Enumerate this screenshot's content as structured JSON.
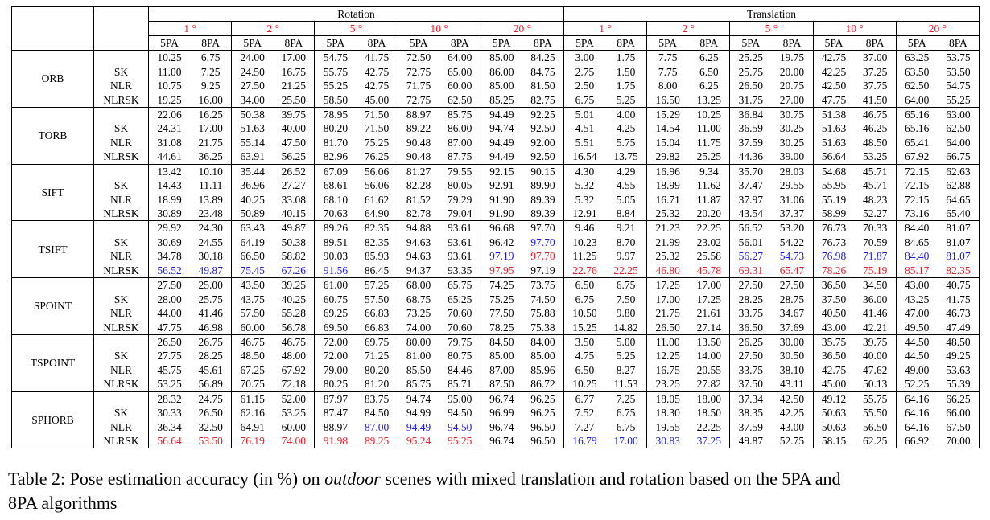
{
  "header": {
    "groups": [
      "Rotation",
      "Translation"
    ],
    "thresholds": [
      "1 °",
      "2 °",
      "5 °",
      "10 °",
      "20 °"
    ],
    "threshold_color": "#e8202a",
    "columns": [
      "5PA",
      "8PA"
    ]
  },
  "methods": [
    {
      "name": "ORB",
      "rows": [
        {
          "values": [
            "10.25",
            "6.75",
            "24.00",
            "17.00",
            "54.75",
            "41.75",
            "72.50",
            "64.00",
            "85.00",
            "84.25",
            "3.00",
            "1.75",
            "7.75",
            "6.25",
            "25.25",
            "19.75",
            "42.75",
            "37.00",
            "63.25",
            "53.75"
          ]
        },
        {
          "label": "SK",
          "values": [
            "11.00",
            "7.25",
            "24.50",
            "16.75",
            "55.75",
            "42.75",
            "72.75",
            "65.00",
            "86.00",
            "84.75",
            "2.75",
            "1.50",
            "7.75",
            "6.50",
            "25.75",
            "20.00",
            "42.25",
            "37.25",
            "63.50",
            "53.50"
          ]
        },
        {
          "label": "NLR",
          "values": [
            "10.75",
            "9.25",
            "27.50",
            "21.25",
            "55.25",
            "42.75",
            "71.75",
            "60.00",
            "85.00",
            "81.50",
            "2.50",
            "1.75",
            "8.00",
            "6.25",
            "26.50",
            "20.75",
            "42.50",
            "37.75",
            "62.50",
            "54.75"
          ]
        },
        {
          "label": "NLRSK",
          "values": [
            "19.25",
            "16.00",
            "34.00",
            "25.50",
            "58.50",
            "45.00",
            "72.75",
            "62.50",
            "85.25",
            "82.75",
            "6.75",
            "5.25",
            "16.50",
            "13.25",
            "31.75",
            "27.00",
            "47.75",
            "41.50",
            "64.00",
            "55.25"
          ]
        }
      ]
    },
    {
      "name": "TORB",
      "rows": [
        {
          "values": [
            "22.06",
            "16.25",
            "50.38",
            "39.75",
            "78.95",
            "71.50",
            "88.97",
            "85.75",
            "94.49",
            "92.25",
            "5.01",
            "4.00",
            "15.29",
            "10.25",
            "36.84",
            "30.75",
            "51.38",
            "46.75",
            "65.16",
            "63.00"
          ]
        },
        {
          "label": "SK",
          "values": [
            "24.31",
            "17.00",
            "51.63",
            "40.00",
            "80.20",
            "71.50",
            "89.22",
            "86.00",
            "94.74",
            "92.50",
            "4.51",
            "4.25",
            "14.54",
            "11.00",
            "36.59",
            "30.25",
            "51.63",
            "46.25",
            "65.16",
            "62.50"
          ]
        },
        {
          "label": "NLR",
          "values": [
            "31.08",
            "21.75",
            "55.14",
            "47.50",
            "81.70",
            "75.25",
            "90.48",
            "87.00",
            "94.49",
            "92.00",
            "5.51",
            "5.75",
            "15.04",
            "11.75",
            "37.59",
            "30.25",
            "51.63",
            "48.50",
            "65.41",
            "64.00"
          ]
        },
        {
          "label": "NLRSK",
          "values": [
            "44.61",
            "36.25",
            "63.91",
            "56.25",
            "82.96",
            "76.25",
            "90.48",
            "87.75",
            "94.49",
            "92.50",
            "16.54",
            "13.75",
            "29.82",
            "25.25",
            "44.36",
            "39.00",
            "56.64",
            "53.25",
            "67.92",
            "66.75"
          ]
        }
      ]
    },
    {
      "name": "SIFT",
      "rows": [
        {
          "values": [
            "13.42",
            "10.10",
            "35.44",
            "26.52",
            "67.09",
            "56.06",
            "81.27",
            "79.55",
            "92.15",
            "90.15",
            "4.30",
            "4.29",
            "16.96",
            "9.34",
            "35.70",
            "28.03",
            "54.68",
            "45.71",
            "72.15",
            "62.63"
          ]
        },
        {
          "label": "SK",
          "values": [
            "14.43",
            "11.11",
            "36.96",
            "27.27",
            "68.61",
            "56.06",
            "82.28",
            "80.05",
            "92.91",
            "89.90",
            "5.32",
            "4.55",
            "18.99",
            "11.62",
            "37.47",
            "29.55",
            "55.95",
            "45.71",
            "72.15",
            "62.88"
          ]
        },
        {
          "label": "NLR",
          "values": [
            "18.99",
            "13.89",
            "40.25",
            "33.08",
            "68.10",
            "61.62",
            "81.52",
            "79.29",
            "91.90",
            "89.39",
            "5.32",
            "5.05",
            "16.71",
            "11.87",
            "37.97",
            "31.06",
            "55.19",
            "48.23",
            "72.15",
            "64.65"
          ]
        },
        {
          "label": "NLRSK",
          "values": [
            "30.89",
            "23.48",
            "50.89",
            "40.15",
            "70.63",
            "64.90",
            "82.78",
            "79.04",
            "91.90",
            "89.39",
            "12.91",
            "8.84",
            "25.32",
            "20.20",
            "43.54",
            "37.37",
            "58.99",
            "52.27",
            "73.16",
            "65.40"
          ]
        }
      ]
    },
    {
      "name": "TSIFT",
      "rows": [
        {
          "values": [
            "29.92",
            "24.30",
            "63.43",
            "49.87",
            "89.26",
            "82.35",
            "94.88",
            "93.61",
            "96.68",
            "97.70",
            "9.46",
            "9.21",
            "21.23",
            "22.25",
            "56.52",
            "53.20",
            "76.73",
            "70.33",
            "84.40",
            "81.07"
          ]
        },
        {
          "label": "SK",
          "values": [
            "30.69",
            "24.55",
            "64.19",
            "50.38",
            "89.51",
            "82.35",
            "94.63",
            "93.61",
            "96.42",
            "97.70",
            "10.23",
            "8.70",
            "21.99",
            "23.02",
            "56.01",
            "54.22",
            "76.73",
            "70.59",
            "84.65",
            "81.07"
          ],
          "colors": [
            null,
            null,
            null,
            null,
            null,
            null,
            null,
            null,
            null,
            "#2020e0",
            null,
            null,
            null,
            null,
            null,
            null,
            null,
            null,
            null,
            null
          ]
        },
        {
          "label": "NLR",
          "values": [
            "34.78",
            "30.18",
            "66.50",
            "58.82",
            "90.03",
            "85.93",
            "94.63",
            "93.61",
            "97.19",
            "97.70",
            "11.25",
            "9.97",
            "25.32",
            "25.58",
            "56.27",
            "54.73",
            "76.98",
            "71.87",
            "84.40",
            "81.07"
          ],
          "colors": [
            null,
            null,
            null,
            null,
            null,
            null,
            null,
            null,
            "#2020e0",
            "#e8202a",
            null,
            null,
            null,
            null,
            "#2020e0",
            "#2020e0",
            "#2020e0",
            "#2020e0",
            "#2020e0",
            "#2020e0"
          ]
        },
        {
          "label": "NLRSK",
          "values": [
            "56.52",
            "49.87",
            "75.45",
            "67.26",
            "91.56",
            "86.45",
            "94.37",
            "93.35",
            "97.95",
            "97.19",
            "22.76",
            "22.25",
            "46.80",
            "45.78",
            "69.31",
            "65.47",
            "78.26",
            "75.19",
            "85.17",
            "82.35"
          ],
          "colors": [
            "#2020e0",
            "#2020e0",
            "#2020e0",
            "#2020e0",
            "#2020e0",
            null,
            null,
            null,
            "#e8202a",
            null,
            "#e8202a",
            "#e8202a",
            "#e8202a",
            "#e8202a",
            "#e8202a",
            "#e8202a",
            "#e8202a",
            "#e8202a",
            "#e8202a",
            "#e8202a"
          ]
        }
      ]
    },
    {
      "name": "SPOINT",
      "rows": [
        {
          "values": [
            "27.50",
            "25.00",
            "43.50",
            "39.25",
            "61.00",
            "57.25",
            "68.00",
            "65.75",
            "74.25",
            "73.75",
            "6.50",
            "6.75",
            "17.25",
            "17.00",
            "27.50",
            "27.50",
            "36.50",
            "34.50",
            "43.00",
            "40.75"
          ]
        },
        {
          "label": "SK",
          "values": [
            "28.00",
            "25.75",
            "43.75",
            "40.25",
            "60.75",
            "57.50",
            "68.75",
            "65.25",
            "75.25",
            "74.50",
            "6.75",
            "7.50",
            "17.00",
            "17.25",
            "28.25",
            "28.75",
            "37.50",
            "36.00",
            "43.25",
            "41.75"
          ]
        },
        {
          "label": "NLR",
          "values": [
            "44.00",
            "41.46",
            "57.50",
            "55.28",
            "69.25",
            "66.83",
            "73.25",
            "70.60",
            "77.50",
            "75.88",
            "10.50",
            "9.80",
            "21.75",
            "21.61",
            "33.75",
            "34.67",
            "40.50",
            "41.46",
            "47.00",
            "46.73"
          ]
        },
        {
          "label": "NLRSK",
          "values": [
            "47.75",
            "46.98",
            "60.00",
            "56.78",
            "69.50",
            "66.83",
            "74.00",
            "70.60",
            "78.25",
            "75.38",
            "15.25",
            "14.82",
            "26.50",
            "27.14",
            "36.50",
            "37.69",
            "43.00",
            "42.21",
            "49.50",
            "47.49"
          ]
        }
      ]
    },
    {
      "name": "TSPOINT",
      "rows": [
        {
          "values": [
            "26.50",
            "26.75",
            "46.75",
            "46.75",
            "72.00",
            "69.75",
            "80.00",
            "79.75",
            "84.50",
            "84.00",
            "3.50",
            "5.00",
            "11.00",
            "13.50",
            "26.25",
            "30.00",
            "35.75",
            "39.75",
            "44.50",
            "48.50"
          ]
        },
        {
          "label": "SK",
          "values": [
            "27.75",
            "28.25",
            "48.50",
            "48.00",
            "72.00",
            "71.25",
            "81.00",
            "80.75",
            "85.00",
            "85.00",
            "4.75",
            "5.25",
            "12.25",
            "14.00",
            "27.50",
            "30.50",
            "36.50",
            "40.00",
            "44.50",
            "49.25"
          ]
        },
        {
          "label": "NLR",
          "values": [
            "45.75",
            "45.61",
            "67.25",
            "67.92",
            "79.00",
            "80.20",
            "85.50",
            "84.46",
            "87.00",
            "85.96",
            "6.50",
            "8.27",
            "16.75",
            "20.55",
            "33.75",
            "38.10",
            "42.75",
            "47.62",
            "49.00",
            "53.63"
          ]
        },
        {
          "label": "NLRSK",
          "values": [
            "53.25",
            "56.89",
            "70.75",
            "72.18",
            "80.25",
            "81.20",
            "85.75",
            "85.71",
            "87.50",
            "86.72",
            "10.25",
            "11.53",
            "23.25",
            "27.82",
            "37.50",
            "43.11",
            "45.00",
            "50.13",
            "52.25",
            "55.39"
          ]
        }
      ]
    },
    {
      "name": "SPHORB",
      "rows": [
        {
          "values": [
            "28.32",
            "24.75",
            "61.15",
            "52.00",
            "87.97",
            "83.75",
            "94.74",
            "95.00",
            "96.74",
            "96.25",
            "6.77",
            "7.25",
            "18.05",
            "18.00",
            "37.34",
            "42.50",
            "49.12",
            "55.75",
            "64.16",
            "66.25"
          ]
        },
        {
          "label": "SK",
          "values": [
            "30.33",
            "26.50",
            "62.16",
            "53.25",
            "87.47",
            "84.50",
            "94.99",
            "94.50",
            "96.99",
            "96.25",
            "7.52",
            "6.75",
            "18.30",
            "18.50",
            "38.35",
            "42.25",
            "50.63",
            "55.50",
            "64.16",
            "66.00"
          ]
        },
        {
          "label": "NLR",
          "values": [
            "36.34",
            "32.50",
            "64.91",
            "60.00",
            "88.97",
            "87.00",
            "94.49",
            "94.50",
            "96.74",
            "96.50",
            "7.27",
            "6.75",
            "19.55",
            "22.25",
            "37.59",
            "43.00",
            "50.63",
            "56.50",
            "64.16",
            "67.50"
          ],
          "colors": [
            null,
            null,
            null,
            null,
            null,
            "#2020e0",
            "#2020e0",
            "#2020e0",
            null,
            null,
            null,
            null,
            null,
            null,
            null,
            null,
            null,
            null,
            null,
            null
          ]
        },
        {
          "label": "NLRSK",
          "values": [
            "56.64",
            "53.50",
            "76.19",
            "74.00",
            "91.98",
            "89.25",
            "95.24",
            "95.25",
            "96.74",
            "96.50",
            "16.79",
            "17.00",
            "30.83",
            "37.25",
            "49.87",
            "52.75",
            "58.15",
            "62.25",
            "66.92",
            "70.00"
          ],
          "colors": [
            "#e8202a",
            "#e8202a",
            "#e8202a",
            "#e8202a",
            "#e8202a",
            "#e8202a",
            "#e8202a",
            "#e8202a",
            null,
            null,
            "#2020e0",
            "#2020e0",
            "#2020e0",
            "#2020e0",
            null,
            null,
            null,
            null,
            null,
            null
          ]
        }
      ]
    }
  ],
  "caption": {
    "before": "Table 2: Pose estimation accuracy (in %) on",
    "emphasis": "outdoor",
    "after": "scenes with mixed translation and rotation based on the 5PA and 8PA algorithms"
  }
}
